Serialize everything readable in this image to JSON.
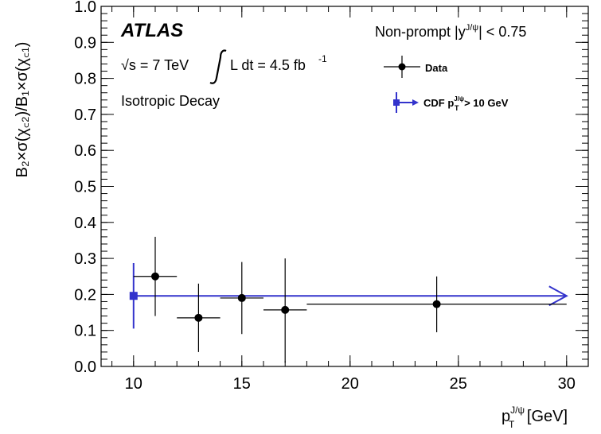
{
  "chart_data": {
    "type": "scatter",
    "title": "",
    "experiment_label": "ATLAS",
    "energy_label": "√s = 7 TeV",
    "lumi_label": "L dt = 4.5 fb",
    "lumi_exponent": "-1",
    "decay_label": "Isotropic Decay",
    "selection_label_prefix": "Non-prompt  |y",
    "selection_label_sup": "J/ψ",
    "selection_label_suffix": "| < 0.75",
    "xlabel_base": "p",
    "xlabel_sup": "J/ψ",
    "xlabel_sub": "T",
    "xlabel_unit": " [GeV]",
    "ylabel_text": "B₂×σ(χ꜀₂)/B₁×σ(χ꜀₁)",
    "xlim": [
      8.5,
      31.0
    ],
    "ylim": [
      0.0,
      1.0
    ],
    "x_ticks": [
      10,
      15,
      20,
      25,
      30
    ],
    "x_tick_labels": [
      "10",
      "15",
      "20",
      "25",
      "30"
    ],
    "y_ticks": [
      0.0,
      0.1,
      0.2,
      0.3,
      0.4,
      0.5,
      0.6,
      0.7,
      0.8,
      0.9,
      1.0
    ],
    "y_tick_labels": [
      "0.0",
      "0.1",
      "0.2",
      "0.3",
      "0.4",
      "0.5",
      "0.6",
      "0.7",
      "0.8",
      "0.9",
      "1.0"
    ],
    "grid": false,
    "legend_position": "top-right",
    "series": [
      {
        "name": "Data",
        "color": "#000000",
        "marker": "circle",
        "points": [
          {
            "x": 11,
            "xlo": 10,
            "xhi": 12,
            "y": 0.25,
            "ylo": 0.14,
            "yhi": 0.36
          },
          {
            "x": 13,
            "xlo": 12,
            "xhi": 14,
            "y": 0.135,
            "ylo": 0.04,
            "yhi": 0.23
          },
          {
            "x": 15,
            "xlo": 14,
            "xhi": 16,
            "y": 0.19,
            "ylo": 0.09,
            "yhi": 0.29
          },
          {
            "x": 17,
            "xlo": 16,
            "xhi": 18,
            "y": 0.157,
            "ylo": 0.01,
            "yhi": 0.3
          },
          {
            "x": 24,
            "xlo": 18,
            "xhi": 30,
            "y": 0.173,
            "ylo": 0.095,
            "yhi": 0.25
          }
        ]
      },
      {
        "name_prefix": "CDF p",
        "name_sup": "J/ψ",
        "name_sub": "T",
        "name_suffix": " > 10 GeV",
        "color": "#3333cc",
        "marker": "square",
        "points": [
          {
            "x": 10,
            "y": 0.196,
            "ylo": 0.105,
            "yhi": 0.287,
            "arrow_to": 30
          }
        ]
      }
    ]
  }
}
